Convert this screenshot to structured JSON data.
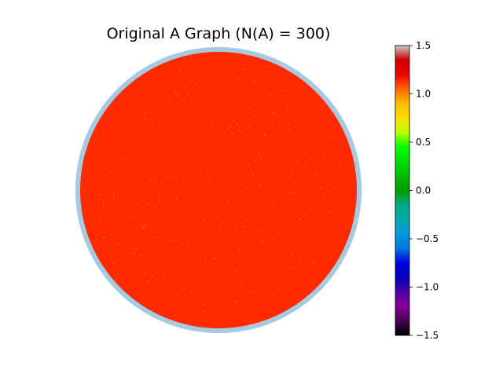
{
  "chart_data": {
    "type": "network-graph",
    "title": "Original A Graph (N(A) = 300)",
    "node_count": 300,
    "layout": "circular",
    "node_color": "#a6cae1",
    "edge_color": "#ff2a00",
    "edge_value": 1.0,
    "colorbar": {
      "colormap": "nipy_spectral",
      "vmin": -1.5,
      "vmax": 1.5,
      "ticks": [
        1.5,
        1.0,
        0.5,
        0.0,
        -0.5,
        -1.0,
        -1.5
      ],
      "tick_labels": [
        "1.5",
        "1.0",
        "0.5",
        "0.0",
        "−0.5",
        "−1.0",
        "−1.5"
      ],
      "placement": "right"
    }
  }
}
